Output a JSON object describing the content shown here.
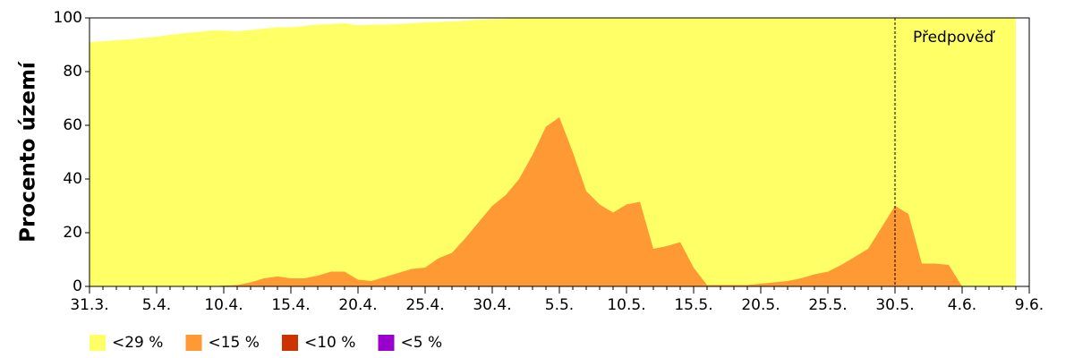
{
  "chart_data": {
    "type": "area",
    "ylabel": "Procento území",
    "categories": [
      "31.3.",
      null,
      null,
      null,
      null,
      "5.4.",
      null,
      null,
      null,
      null,
      "10.4.",
      null,
      null,
      null,
      null,
      "15.4.",
      null,
      null,
      null,
      null,
      "20.4.",
      null,
      null,
      null,
      null,
      "25.4.",
      null,
      null,
      null,
      null,
      "30.4.",
      null,
      null,
      null,
      null,
      "5.5.",
      null,
      null,
      null,
      null,
      "10.5.",
      null,
      null,
      null,
      null,
      "15.5.",
      null,
      null,
      null,
      null,
      "20.5.",
      null,
      null,
      null,
      null,
      "25.5.",
      null,
      null,
      null,
      null,
      "30.5.",
      null,
      null,
      null,
      null,
      "4.6.",
      null,
      null,
      null,
      null,
      "9.6."
    ],
    "series": [
      {
        "name": "<29 %",
        "color": "#ffff66",
        "values": [
          91,
          91.3,
          91.7,
          92,
          92.5,
          93,
          93.7,
          94.3,
          94.7,
          95.3,
          95.3,
          95,
          95.5,
          96,
          96.5,
          96.5,
          97,
          97.5,
          97.7,
          98,
          97.3,
          97.5,
          97.5,
          97.7,
          98,
          98.3,
          98.5,
          98.7,
          99,
          99.3,
          99.5,
          99.7,
          100,
          100,
          100,
          100,
          100,
          100,
          100,
          100,
          100,
          100,
          100,
          100,
          100,
          100,
          100,
          100,
          100,
          100,
          100,
          100,
          100,
          100,
          100,
          100,
          100,
          100,
          100,
          100,
          100,
          100,
          100,
          100,
          100,
          100,
          100,
          100,
          100,
          100,
          null
        ]
      },
      {
        "name": "<15 %",
        "color": "#ff9933",
        "values": [
          0,
          0,
          0,
          0,
          0,
          0,
          0,
          0,
          0,
          0,
          0.3,
          0.5,
          1.5,
          3,
          3.7,
          3,
          3,
          4,
          5.5,
          5.5,
          2.5,
          2,
          3.5,
          5,
          6.5,
          7,
          10.5,
          12.5,
          18,
          24,
          30,
          34,
          40,
          49,
          59.5,
          63,
          50,
          35.5,
          30.5,
          27.5,
          30.5,
          31.5,
          14,
          15,
          16.5,
          7,
          0.5,
          0.5,
          0.5,
          0.5,
          1,
          1.5,
          2,
          3,
          4.5,
          5.5,
          8,
          11,
          14,
          22,
          30,
          27,
          8.5,
          8.5,
          8,
          0,
          0,
          0,
          0,
          0,
          null
        ]
      },
      {
        "name": "<10 %",
        "color": "#cc3300"
      },
      {
        "name": "<5 %",
        "color": "#9900cc"
      }
    ],
    "forecast_label": "Předpověď",
    "forecast_start": "30.5.",
    "ylim": [
      0,
      100
    ],
    "yticks": [
      0,
      20,
      40,
      60,
      80,
      100
    ]
  }
}
